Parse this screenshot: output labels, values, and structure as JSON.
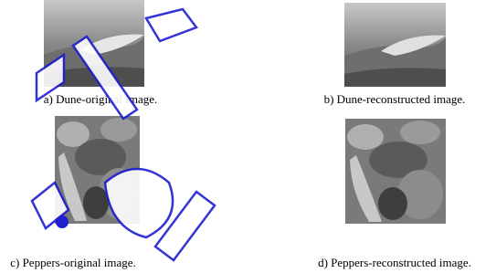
{
  "figure": {
    "panels": [
      {
        "caption": "a) Dune-original image."
      },
      {
        "caption": "b) Dune-reconstructed image."
      },
      {
        "caption": "c) Peppers-original image."
      },
      {
        "caption": "d) Peppers-reconstructed image."
      }
    ]
  }
}
